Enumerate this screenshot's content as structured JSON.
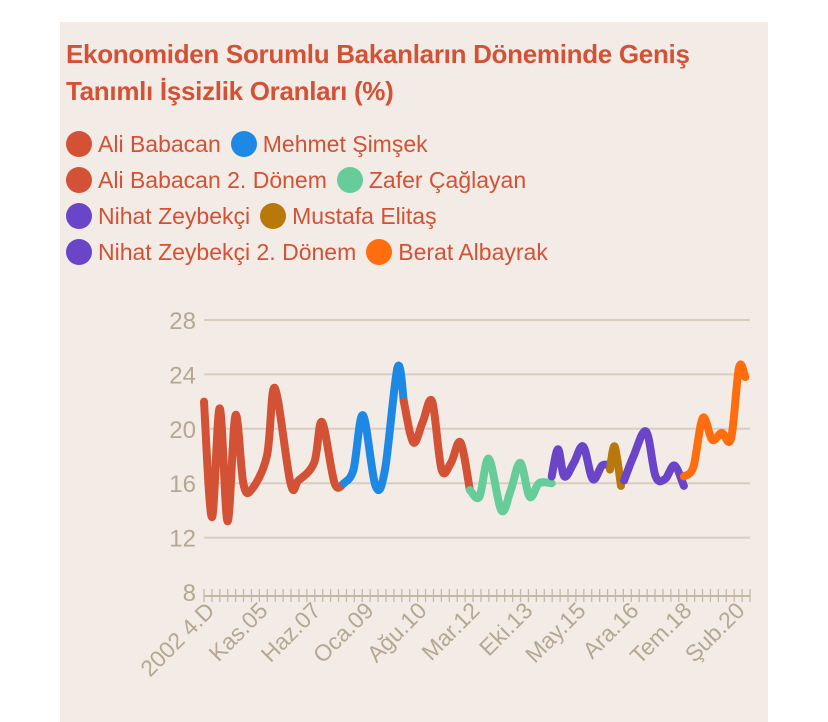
{
  "chart_data": {
    "type": "line",
    "title": "Ekonomiden Sorumlu Bakanların Döneminde Geniş Tanımlı İşsizlik Oranları (%)",
    "xlabel": "",
    "ylabel": "",
    "ylim": [
      8,
      28
    ],
    "yticks": [
      "28",
      "24",
      "20",
      "16",
      "12",
      "8"
    ],
    "xtick_labels": [
      "2002 4.D",
      "Kas.05",
      "Haz.07",
      "Oca.09",
      "Ağu.10",
      "Mar.12",
      "Eki.13",
      "May.15",
      "Ara.16",
      "Tem.18",
      "Şub.20"
    ],
    "grid": true,
    "legend_placement": "top",
    "legend": [
      {
        "name": "Ali Babacan",
        "color": "#d35135"
      },
      {
        "name": "Mehmet Şimşek",
        "color": "#1e88e5"
      },
      {
        "name": "Ali Babacan 2. Dönem",
        "color": "#d35135"
      },
      {
        "name": "Zafer Çağlayan",
        "color": "#66cc99"
      },
      {
        "name": "Nihat Zeybekçi",
        "color": "#6a45c8"
      },
      {
        "name": "Mustafa Elitaş",
        "color": "#b8780a"
      },
      {
        "name": "Nihat Zeybekçi 2. Dönem",
        "color": "#6a45c8"
      },
      {
        "name": "Berat Albayrak",
        "color": "#ff6d0f"
      }
    ],
    "series": [
      {
        "name": "Ali Babacan",
        "color": "#d35135",
        "points": [
          [
            2002.75,
            22.0
          ],
          [
            2003.0,
            13.5
          ],
          [
            2003.25,
            21.5
          ],
          [
            2003.5,
            13.2
          ],
          [
            2003.75,
            21.0
          ],
          [
            2004.0,
            16.0
          ],
          [
            2004.25,
            15.5
          ],
          [
            2004.75,
            18.0
          ],
          [
            2005.0,
            23.0
          ],
          [
            2005.5,
            16.0
          ],
          [
            2005.75,
            16.2
          ],
          [
            2006.25,
            17.5
          ],
          [
            2006.5,
            20.5
          ],
          [
            2006.9,
            16.0
          ],
          [
            2007.2,
            16.0
          ]
        ]
      },
      {
        "name": "Mehmet Şimşek",
        "color": "#1e88e5",
        "points": [
          [
            2007.2,
            16.0
          ],
          [
            2007.5,
            17.0
          ],
          [
            2007.8,
            21.0
          ],
          [
            2008.2,
            15.8
          ],
          [
            2008.5,
            17.0
          ],
          [
            2008.9,
            24.5
          ],
          [
            2009.1,
            22.0
          ]
        ]
      },
      {
        "name": "Ali Babacan 2. Dönem",
        "color": "#d35135",
        "points": [
          [
            2009.1,
            22.0
          ],
          [
            2009.4,
            19.0
          ],
          [
            2009.7,
            20.5
          ],
          [
            2010.0,
            22.0
          ],
          [
            2010.3,
            17.0
          ],
          [
            2010.6,
            17.5
          ],
          [
            2010.9,
            19.0
          ],
          [
            2011.2,
            15.5
          ]
        ]
      },
      {
        "name": "Zafer Çağlayan",
        "color": "#66cc99",
        "points": [
          [
            2011.2,
            15.5
          ],
          [
            2011.5,
            15.0
          ],
          [
            2011.8,
            17.8
          ],
          [
            2012.2,
            14.0
          ],
          [
            2012.5,
            15.5
          ],
          [
            2012.8,
            17.5
          ],
          [
            2013.1,
            15.0
          ],
          [
            2013.4,
            16.0
          ],
          [
            2013.8,
            16.0
          ]
        ]
      },
      {
        "name": "Nihat Zeybekçi",
        "color": "#6a45c8",
        "points": [
          [
            2013.8,
            16.5
          ],
          [
            2014.0,
            18.5
          ],
          [
            2014.2,
            16.5
          ],
          [
            2014.5,
            17.5
          ],
          [
            2014.8,
            18.7
          ],
          [
            2015.1,
            16.3
          ],
          [
            2015.4,
            17.3
          ],
          [
            2015.65,
            17.3
          ]
        ]
      },
      {
        "name": "Mustafa Elitaş",
        "color": "#b8780a",
        "points": [
          [
            2015.65,
            17.0
          ],
          [
            2015.8,
            18.7
          ],
          [
            2016.0,
            15.8
          ]
        ]
      },
      {
        "name": "Nihat Zeybekçi 2. Dönem",
        "color": "#6a45c8",
        "points": [
          [
            2016.1,
            16.2
          ],
          [
            2016.4,
            18.0
          ],
          [
            2016.8,
            19.8
          ],
          [
            2017.1,
            16.5
          ],
          [
            2017.4,
            16.3
          ],
          [
            2017.7,
            17.3
          ],
          [
            2018.0,
            15.8
          ]
        ]
      },
      {
        "name": "Berat Albayrak",
        "color": "#ff6d0f",
        "points": [
          [
            2018.0,
            16.5
          ],
          [
            2018.3,
            17.2
          ],
          [
            2018.6,
            20.8
          ],
          [
            2018.9,
            19.2
          ],
          [
            2019.2,
            19.7
          ],
          [
            2019.5,
            19.3
          ],
          [
            2019.75,
            24.5
          ],
          [
            2019.95,
            23.8
          ]
        ]
      }
    ]
  }
}
